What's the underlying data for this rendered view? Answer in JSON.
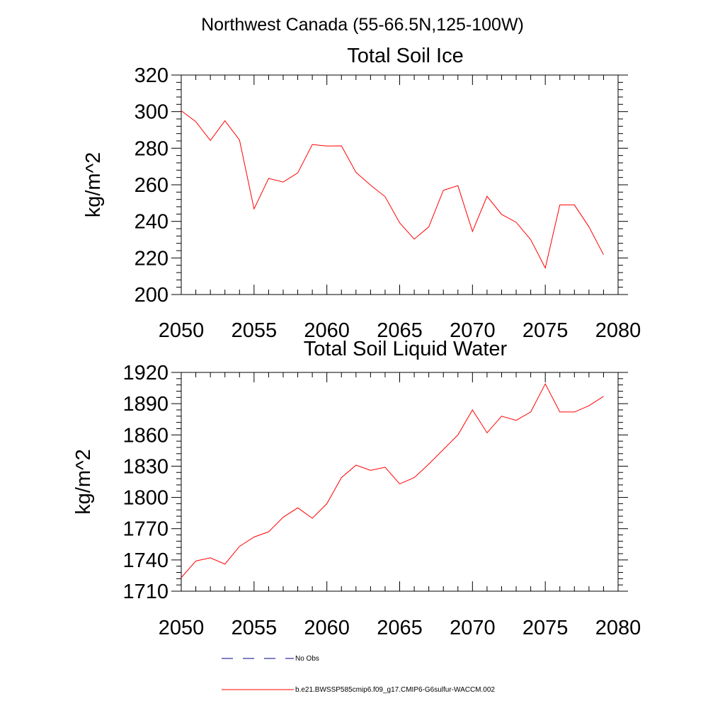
{
  "suptitle": "Northwest Canada (55-66.5N,125-100W)",
  "colors": {
    "series": "#ff0000",
    "obs": "#00008b",
    "axis": "#000000",
    "background": "#ffffff"
  },
  "legend": [
    {
      "label": "No Obs",
      "style": "dashed",
      "color": "#00008b"
    },
    {
      "label": "b.e21.BWSSP585cmip6.f09_g17.CMIP6-G6sulfur-WACCM.002",
      "style": "solid",
      "color": "#ff0000"
    }
  ],
  "chart_data": [
    {
      "type": "line",
      "title": "Total Soil Ice",
      "xlabel": "",
      "ylabel": "kg/m^2",
      "xlim": [
        2050,
        2080
      ],
      "ylim": [
        200,
        320
      ],
      "xticks": [
        2050,
        2055,
        2060,
        2065,
        2070,
        2075,
        2080
      ],
      "yticks": [
        200,
        220,
        240,
        260,
        280,
        300,
        320
      ],
      "grid": false,
      "x": [
        2050,
        2051,
        2052,
        2053,
        2054,
        2055,
        2056,
        2057,
        2058,
        2059,
        2060,
        2061,
        2062,
        2063,
        2064,
        2065,
        2066,
        2067,
        2068,
        2069,
        2070,
        2071,
        2072,
        2073,
        2074,
        2075,
        2076,
        2077,
        2078,
        2079
      ],
      "series": [
        {
          "name": "b.e21.BWSSP585cmip6.f09_g17.CMIP6-G6sulfur-WACCM.002",
          "values": [
            300.5,
            294.5,
            284.2,
            295.0,
            284.5,
            246.8,
            263.5,
            261.5,
            266.5,
            282.0,
            281.2,
            281.3,
            266.8,
            259.8,
            253.5,
            239.2,
            230.3,
            237.0,
            257.0,
            259.5,
            234.5,
            253.7,
            243.8,
            239.5,
            230.0,
            214.5,
            249.0,
            249.0,
            237.0,
            221.8
          ]
        }
      ]
    },
    {
      "type": "line",
      "title": "Total Soil Liquid Water",
      "xlabel": "",
      "ylabel": "kg/m^2",
      "xlim": [
        2050,
        2080
      ],
      "ylim": [
        1710,
        1920
      ],
      "xticks": [
        2050,
        2055,
        2060,
        2065,
        2070,
        2075,
        2080
      ],
      "yticks": [
        1710,
        1740,
        1770,
        1800,
        1830,
        1860,
        1890,
        1920
      ],
      "grid": false,
      "x": [
        2050,
        2051,
        2052,
        2053,
        2054,
        2055,
        2056,
        2057,
        2058,
        2059,
        2060,
        2061,
        2062,
        2063,
        2064,
        2065,
        2066,
        2067,
        2068,
        2069,
        2070,
        2071,
        2072,
        2073,
        2074,
        2075,
        2076,
        2077,
        2078,
        2079
      ],
      "series": [
        {
          "name": "b.e21.BWSSP585cmip6.f09_g17.CMIP6-G6sulfur-WACCM.002",
          "values": [
            1723,
            1739,
            1742,
            1736,
            1753,
            1762,
            1767,
            1781,
            1790,
            1780,
            1794,
            1819,
            1831,
            1826,
            1829,
            1813,
            1819,
            1832,
            1846,
            1860,
            1884,
            1862,
            1878,
            1874,
            1882,
            1909,
            1882,
            1882,
            1888,
            1897
          ]
        }
      ]
    }
  ]
}
